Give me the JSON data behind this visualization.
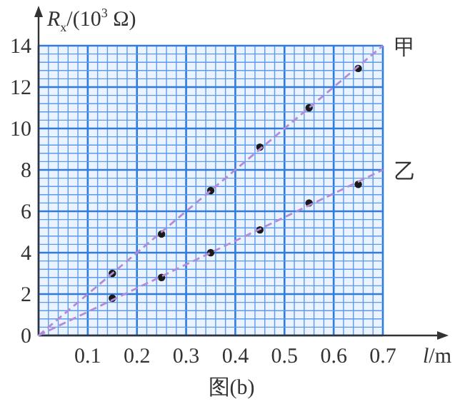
{
  "chart_data": {
    "type": "scatter",
    "xlabel": "*l*/m",
    "ylabel": "*R*$_{x}$/(10$^{3}$ Ω)",
    "annotations": [
      "图(b)"
    ],
    "xlim": [
      0,
      0.7
    ],
    "ylim": [
      0,
      14
    ],
    "xticks": [
      {
        "value": 0,
        "label": null
      },
      {
        "value": 0.02,
        "label": null
      },
      {
        "value": 0.04,
        "label": null
      },
      {
        "value": 0.06,
        "label": null
      },
      {
        "value": 0.08,
        "label": null
      },
      0.1,
      {
        "value": 0.12,
        "label": null
      },
      {
        "value": 0.14,
        "label": null
      },
      {
        "value": 0.16,
        "label": null
      },
      {
        "value": 0.18,
        "label": null
      },
      0.2,
      {
        "value": 0.22,
        "label": null
      },
      {
        "value": 0.24,
        "label": null
      },
      {
        "value": 0.26,
        "label": null
      },
      {
        "value": 0.28,
        "label": null
      },
      0.3,
      {
        "value": 0.32,
        "label": null
      },
      {
        "value": 0.34,
        "label": null
      },
      {
        "value": 0.36,
        "label": null
      },
      {
        "value": 0.38,
        "label": null
      },
      0.4,
      {
        "value": 0.42,
        "label": null
      },
      {
        "value": 0.44,
        "label": null
      },
      {
        "value": 0.46,
        "label": null
      },
      {
        "value": 0.48,
        "label": null
      },
      0.5,
      {
        "value": 0.52,
        "label": null
      },
      {
        "value": 0.54,
        "label": null
      },
      {
        "value": 0.56,
        "label": null
      },
      {
        "value": 0.58,
        "label": null
      },
      0.6,
      {
        "value": 0.62,
        "label": null
      },
      {
        "value": 0.64,
        "label": null
      },
      {
        "value": 0.66,
        "label": null
      },
      {
        "value": 0.68,
        "label": null
      },
      0.7
    ],
    "yticks": [
      0,
      {
        "value": 0.4,
        "label": null
      },
      {
        "value": 0.8,
        "label": null
      },
      {
        "value": 1.2,
        "label": null
      },
      {
        "value": 1.6,
        "label": null
      },
      2,
      {
        "value": 2.4,
        "label": null
      },
      {
        "value": 2.8,
        "label": null
      },
      {
        "value": 3.2,
        "label": null
      },
      {
        "value": 3.6,
        "label": null
      },
      4,
      {
        "value": 4.4,
        "label": null
      },
      {
        "value": 4.8,
        "label": null
      },
      {
        "value": 5.2,
        "label": null
      },
      {
        "value": 5.6,
        "label": null
      },
      6,
      {
        "value": 6.4,
        "label": null
      },
      {
        "value": 6.8,
        "label": null
      },
      {
        "value": 7.2,
        "label": null
      },
      {
        "value": 7.6,
        "label": null
      },
      8,
      {
        "value": 8.4,
        "label": null
      },
      {
        "value": 8.8,
        "label": null
      },
      {
        "value": 9.2,
        "label": null
      },
      {
        "value": 9.6,
        "label": null
      },
      10,
      {
        "value": 10.4,
        "label": null
      },
      {
        "value": 10.8,
        "label": null
      },
      {
        "value": 11.2,
        "label": null
      },
      {
        "value": 11.6,
        "label": null
      },
      12,
      {
        "value": 12.4,
        "label": null
      },
      {
        "value": 12.8,
        "label": null
      },
      {
        "value": 13.2,
        "label": null
      },
      {
        "value": 13.6,
        "label": null
      },
      14
    ],
    "grid": true,
    "series": [
      {
        "color": "#1a1a1a",
        "marker": "circle",
        "x": [
          0.15,
          0.25,
          0.35,
          0.45,
          0.55,
          0.65
        ],
        "values": [
          3.0,
          4.9,
          7.0,
          9.1,
          11.0,
          12.9
        ]
      },
      {
        "color": "#1a1a1a",
        "marker": "circle",
        "x": [
          0.15,
          0.25,
          0.35,
          0.45,
          0.55,
          0.65
        ],
        "values": [
          1.8,
          2.8,
          4.0,
          5.1,
          6.4,
          7.3
        ]
      },
      {
        "type": "line",
        "name": "甲",
        "color": "#b58ad6",
        "marker": "none",
        "line_style": "dashed",
        "x": [
          0,
          0.7
        ],
        "values": [
          0,
          14
        ]
      },
      {
        "type": "line",
        "name": "乙",
        "color": "#b58ad6",
        "marker": "none",
        "line_style": "dashed",
        "x": [
          0,
          0.7
        ],
        "values": [
          0,
          8
        ]
      }
    ]
  }
}
